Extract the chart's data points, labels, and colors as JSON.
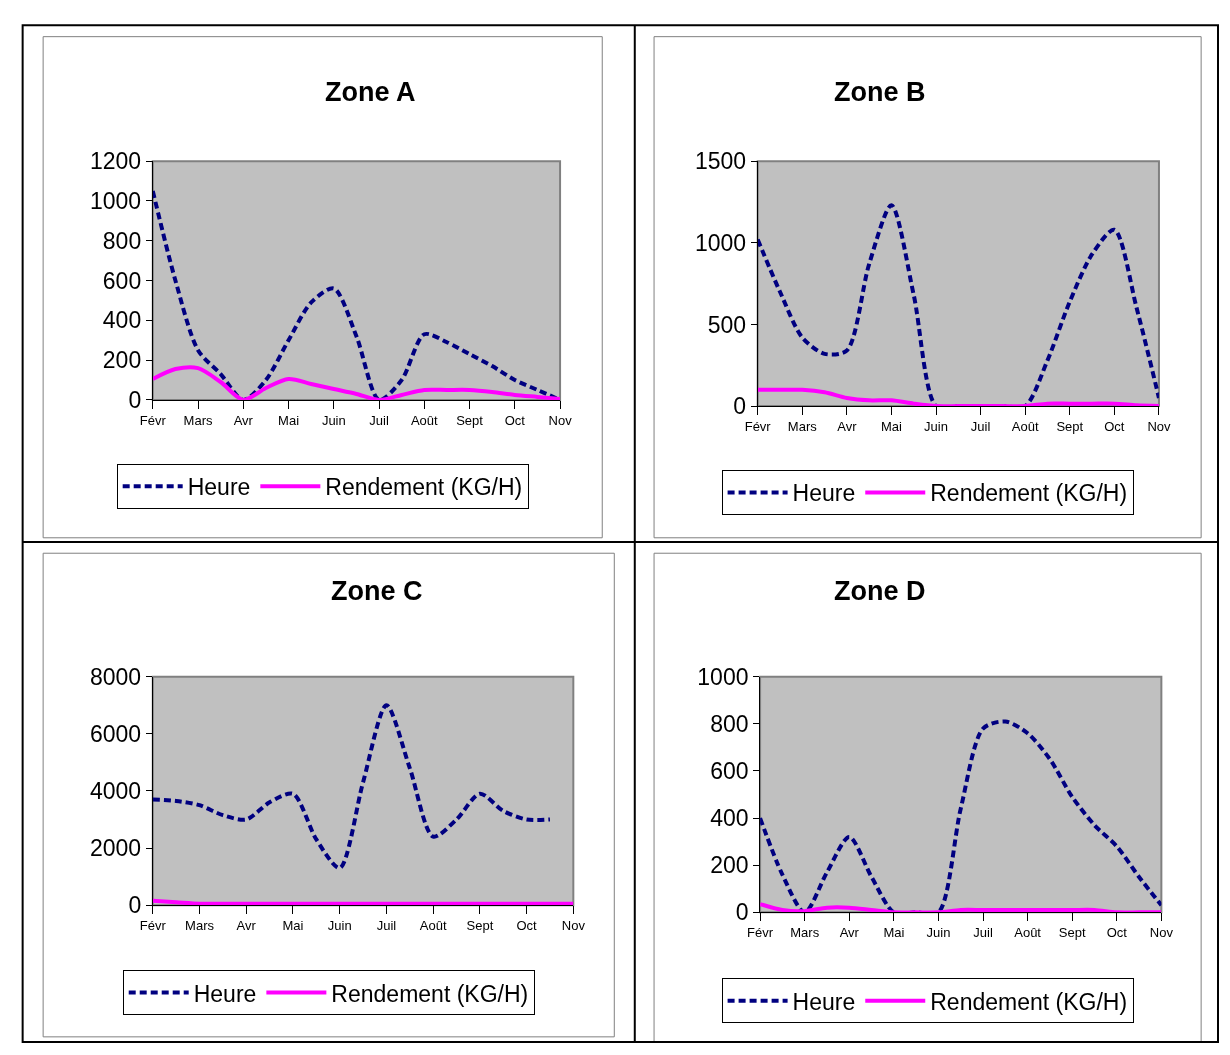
{
  "chart_data": [
    {
      "type": "line",
      "title": "Zone A",
      "categories": [
        "Févr",
        null,
        "Mars",
        null,
        "Avr",
        null,
        "Mai",
        null,
        "Juin",
        null,
        "Juil",
        null,
        "Août",
        null,
        "Sept",
        null,
        "Oct",
        null,
        "Nov"
      ],
      "ylim": [
        0,
        1200
      ],
      "yticks": [
        0,
        200,
        400,
        600,
        800,
        1000,
        1200
      ],
      "grid": false,
      "legend": "bottom",
      "series": [
        {
          "name": "Heure",
          "color": "#000080",
          "line_style": "dashed",
          "values": [
            1050,
            600,
            250,
            130,
            0,
            100,
            300,
            490,
            560,
            320,
            0,
            100,
            330,
            290,
            230,
            170,
            100,
            50,
            0
          ]
        },
        {
          "name": "Rendement (KG/H)",
          "color": "#ff00ff",
          "line_style": "solid",
          "values": [
            105,
            155,
            160,
            90,
            0,
            60,
            105,
            80,
            55,
            30,
            0,
            25,
            50,
            50,
            50,
            40,
            25,
            15,
            5
          ]
        }
      ]
    },
    {
      "type": "line",
      "title": "Zone B",
      "categories": [
        "Févr",
        null,
        "Mars",
        null,
        "Avr",
        null,
        "Mai",
        null,
        "Juin",
        null,
        "Juil",
        null,
        "Août",
        null,
        "Sept",
        null,
        "Oct",
        null,
        "Nov"
      ],
      "ylim": [
        0,
        1500
      ],
      "yticks": [
        0,
        500,
        1000,
        1500
      ],
      "grid": false,
      "legend": "bottom",
      "series": [
        {
          "name": "Heure",
          "color": "#000080",
          "line_style": "dashed",
          "values": [
            1020,
            700,
            420,
            320,
            340,
            870,
            1230,
            680,
            0,
            0,
            0,
            0,
            0,
            280,
            640,
            930,
            1080,
            600,
            50
          ]
        },
        {
          "name": "Rendement (KG/H)",
          "color": "#ff00ff",
          "line_style": "solid",
          "values": [
            100,
            100,
            100,
            85,
            50,
            35,
            35,
            15,
            0,
            0,
            0,
            0,
            0,
            15,
            15,
            15,
            15,
            5,
            0
          ]
        }
      ]
    },
    {
      "type": "line",
      "title": "Zone C",
      "categories": [
        "Févr",
        null,
        "Mars",
        null,
        "Avr",
        null,
        "Mai",
        null,
        "Juin",
        null,
        "Juil",
        null,
        "Août",
        null,
        "Sept",
        null,
        "Oct",
        null,
        "Nov"
      ],
      "ylim": [
        0,
        8000
      ],
      "yticks": [
        0,
        2000,
        4000,
        6000,
        8000
      ],
      "grid": false,
      "legend": "bottom",
      "series": [
        {
          "name": "Heure",
          "color": "#000080",
          "line_style": "dashed",
          "values": [
            3700,
            3650,
            3500,
            3150,
            3000,
            3600,
            3900,
            2300,
            1300,
            4300,
            7000,
            4800,
            2400,
            3000,
            3900,
            3300,
            3000,
            3000,
            null
          ]
        },
        {
          "name": "Rendement (KG/H)",
          "color": "#ff00ff",
          "line_style": "solid",
          "values": [
            150,
            100,
            50,
            50,
            50,
            50,
            50,
            50,
            50,
            50,
            50,
            50,
            50,
            50,
            50,
            50,
            50,
            50,
            50
          ]
        }
      ]
    },
    {
      "type": "line",
      "title": "Zone D",
      "categories": [
        "Févr",
        null,
        "Mars",
        null,
        "Avr",
        null,
        "Mai",
        null,
        "Juin",
        null,
        "Juil",
        null,
        "Août",
        null,
        "Sept",
        null,
        "Oct",
        null,
        "Nov"
      ],
      "ylim": [
        0,
        1000
      ],
      "yticks": [
        0,
        200,
        400,
        600,
        800,
        1000
      ],
      "grid": false,
      "legend": "bottom",
      "series": [
        {
          "name": "Heure",
          "color": "#000080",
          "line_style": "dashed",
          "values": [
            400,
            160,
            0,
            170,
            320,
            150,
            0,
            0,
            0,
            440,
            780,
            810,
            760,
            650,
            490,
            370,
            280,
            150,
            30
          ]
        },
        {
          "name": "Rendement (KG/H)",
          "color": "#ff00ff",
          "line_style": "solid",
          "values": [
            35,
            10,
            5,
            20,
            20,
            10,
            0,
            0,
            0,
            10,
            10,
            10,
            10,
            10,
            10,
            10,
            0,
            0,
            0
          ]
        }
      ]
    }
  ]
}
